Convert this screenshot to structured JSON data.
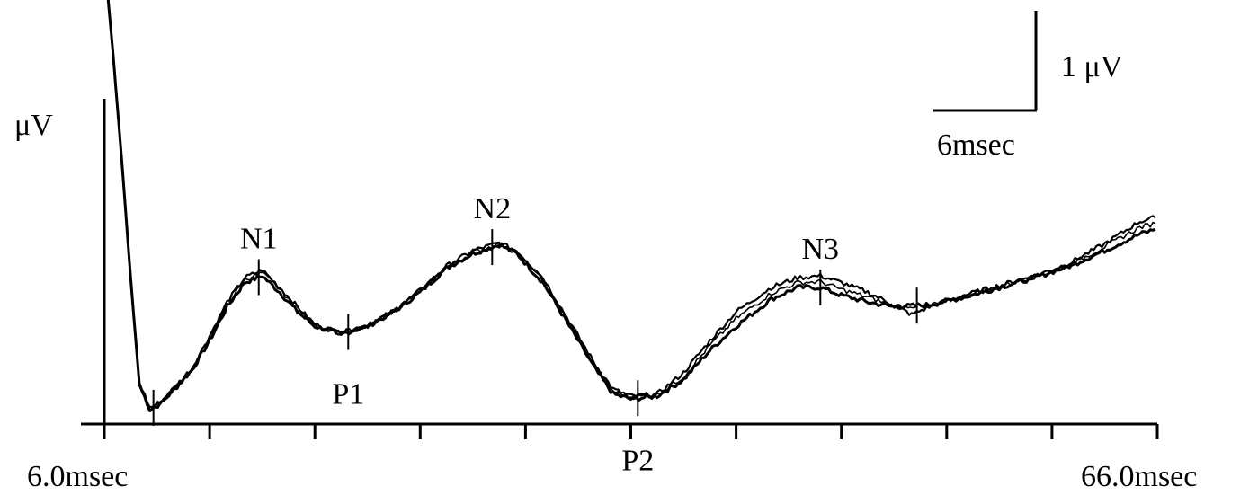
{
  "chart_data": {
    "type": "line",
    "title": "",
    "xlabel": "",
    "ylabel": "μV",
    "x_range_ms": [
      6.0,
      66.0
    ],
    "x_tick_labels": [
      "6.0msec",
      "66.0msec"
    ],
    "x_minor_tick_step_ms": 6,
    "grid": false,
    "scale_bar": {
      "voltage_label": "1 μV",
      "time_label": "6msec",
      "voltage_uV": 1,
      "time_ms": 6
    },
    "peaks": [
      {
        "label": "N1",
        "x": 14.8
      },
      {
        "label": "P1",
        "x": 19.9
      },
      {
        "label": "N2",
        "x": 28.1
      },
      {
        "label": "P2",
        "x": 36.4
      },
      {
        "label": "N3",
        "x": 46.8
      }
    ],
    "series": [
      {
        "points": [
          [
            6.1,
            3.2
          ],
          [
            6.5,
            2.4
          ],
          [
            7.0,
            1.3
          ],
          [
            7.5,
            0.1
          ],
          [
            8.0,
            -1.0
          ],
          [
            8.6,
            -1.26
          ],
          [
            9.2,
            -1.2
          ],
          [
            10.0,
            -1.05
          ],
          [
            11.0,
            -0.85
          ],
          [
            12.0,
            -0.55
          ],
          [
            13.0,
            -0.2
          ],
          [
            14.0,
            0.05
          ],
          [
            15.0,
            0.12
          ],
          [
            16.0,
            -0.05
          ],
          [
            17.0,
            -0.25
          ],
          [
            18.0,
            -0.4
          ],
          [
            19.5,
            -0.48
          ],
          [
            21.0,
            -0.4
          ],
          [
            22.5,
            -0.25
          ],
          [
            24.0,
            -0.05
          ],
          [
            25.5,
            0.2
          ],
          [
            27.0,
            0.35
          ],
          [
            28.5,
            0.44
          ],
          [
            29.5,
            0.35
          ],
          [
            31.0,
            0.05
          ],
          [
            32.5,
            -0.4
          ],
          [
            34.0,
            -0.85
          ],
          [
            35.0,
            -1.1
          ],
          [
            36.0,
            -1.15
          ],
          [
            37.5,
            -1.12
          ],
          [
            39.0,
            -0.95
          ],
          [
            40.5,
            -0.65
          ],
          [
            42.0,
            -0.4
          ],
          [
            44.0,
            -0.12
          ],
          [
            45.5,
            0.0
          ],
          [
            46.8,
            0.0
          ],
          [
            48.0,
            -0.08
          ],
          [
            49.5,
            -0.15
          ],
          [
            51.0,
            -0.2
          ],
          [
            53.0,
            -0.18
          ],
          [
            55.0,
            -0.1
          ],
          [
            57.0,
            0.0
          ],
          [
            59.0,
            0.1
          ],
          [
            61.0,
            0.22
          ],
          [
            63.0,
            0.38
          ],
          [
            65.0,
            0.55
          ],
          [
            65.9,
            0.6
          ]
        ]
      },
      {
        "points": [
          [
            6.1,
            3.2
          ],
          [
            6.5,
            2.4
          ],
          [
            7.0,
            1.3
          ],
          [
            7.5,
            0.1
          ],
          [
            8.0,
            -0.98
          ],
          [
            8.6,
            -1.24
          ],
          [
            9.2,
            -1.18
          ],
          [
            10.0,
            -1.03
          ],
          [
            11.0,
            -0.83
          ],
          [
            12.0,
            -0.5
          ],
          [
            13.0,
            -0.15
          ],
          [
            14.0,
            0.1
          ],
          [
            15.0,
            0.18
          ],
          [
            16.0,
            0.0
          ],
          [
            17.0,
            -0.2
          ],
          [
            18.0,
            -0.38
          ],
          [
            19.5,
            -0.47
          ],
          [
            21.0,
            -0.39
          ],
          [
            22.5,
            -0.24
          ],
          [
            24.0,
            -0.03
          ],
          [
            25.5,
            0.22
          ],
          [
            27.0,
            0.38
          ],
          [
            28.5,
            0.46
          ],
          [
            29.5,
            0.38
          ],
          [
            31.0,
            0.1
          ],
          [
            32.5,
            -0.35
          ],
          [
            34.0,
            -0.8
          ],
          [
            35.0,
            -1.05
          ],
          [
            36.0,
            -1.12
          ],
          [
            37.5,
            -1.1
          ],
          [
            39.0,
            -0.88
          ],
          [
            40.5,
            -0.55
          ],
          [
            42.0,
            -0.25
          ],
          [
            44.0,
            0.0
          ],
          [
            45.5,
            0.1
          ],
          [
            46.8,
            0.12
          ],
          [
            48.0,
            0.05
          ],
          [
            49.5,
            -0.05
          ],
          [
            51.0,
            -0.18
          ],
          [
            52.0,
            -0.28
          ],
          [
            53.0,
            -0.2
          ],
          [
            55.0,
            -0.08
          ],
          [
            57.0,
            0.02
          ],
          [
            59.0,
            0.12
          ],
          [
            61.0,
            0.25
          ],
          [
            63.0,
            0.45
          ],
          [
            65.0,
            0.68
          ],
          [
            65.9,
            0.72
          ]
        ]
      },
      {
        "points": [
          [
            6.1,
            3.2
          ],
          [
            6.5,
            2.4
          ],
          [
            7.0,
            1.3
          ],
          [
            7.5,
            0.1
          ],
          [
            8.0,
            -1.0
          ],
          [
            8.6,
            -1.25
          ],
          [
            9.2,
            -1.19
          ],
          [
            10.0,
            -1.04
          ],
          [
            11.0,
            -0.84
          ],
          [
            12.0,
            -0.52
          ],
          [
            13.0,
            -0.18
          ],
          [
            14.0,
            0.08
          ],
          [
            15.0,
            0.15
          ],
          [
            16.0,
            -0.02
          ],
          [
            17.0,
            -0.22
          ],
          [
            18.0,
            -0.39
          ],
          [
            19.5,
            -0.47
          ],
          [
            21.0,
            -0.4
          ],
          [
            22.5,
            -0.25
          ],
          [
            24.0,
            -0.04
          ],
          [
            25.5,
            0.21
          ],
          [
            27.0,
            0.36
          ],
          [
            28.5,
            0.45
          ],
          [
            29.5,
            0.36
          ],
          [
            31.0,
            0.08
          ],
          [
            32.5,
            -0.37
          ],
          [
            34.0,
            -0.82
          ],
          [
            35.0,
            -1.07
          ],
          [
            36.0,
            -1.13
          ],
          [
            37.5,
            -1.11
          ],
          [
            39.0,
            -0.92
          ],
          [
            40.5,
            -0.6
          ],
          [
            42.0,
            -0.32
          ],
          [
            44.0,
            -0.06
          ],
          [
            45.5,
            0.05
          ],
          [
            46.8,
            0.06
          ],
          [
            48.0,
            -0.02
          ],
          [
            49.5,
            -0.1
          ],
          [
            51.0,
            -0.19
          ],
          [
            53.0,
            -0.19
          ],
          [
            55.0,
            -0.09
          ],
          [
            57.0,
            0.01
          ],
          [
            59.0,
            0.11
          ],
          [
            61.0,
            0.23
          ],
          [
            63.0,
            0.42
          ],
          [
            65.0,
            0.62
          ],
          [
            65.9,
            0.66
          ]
        ]
      }
    ]
  }
}
